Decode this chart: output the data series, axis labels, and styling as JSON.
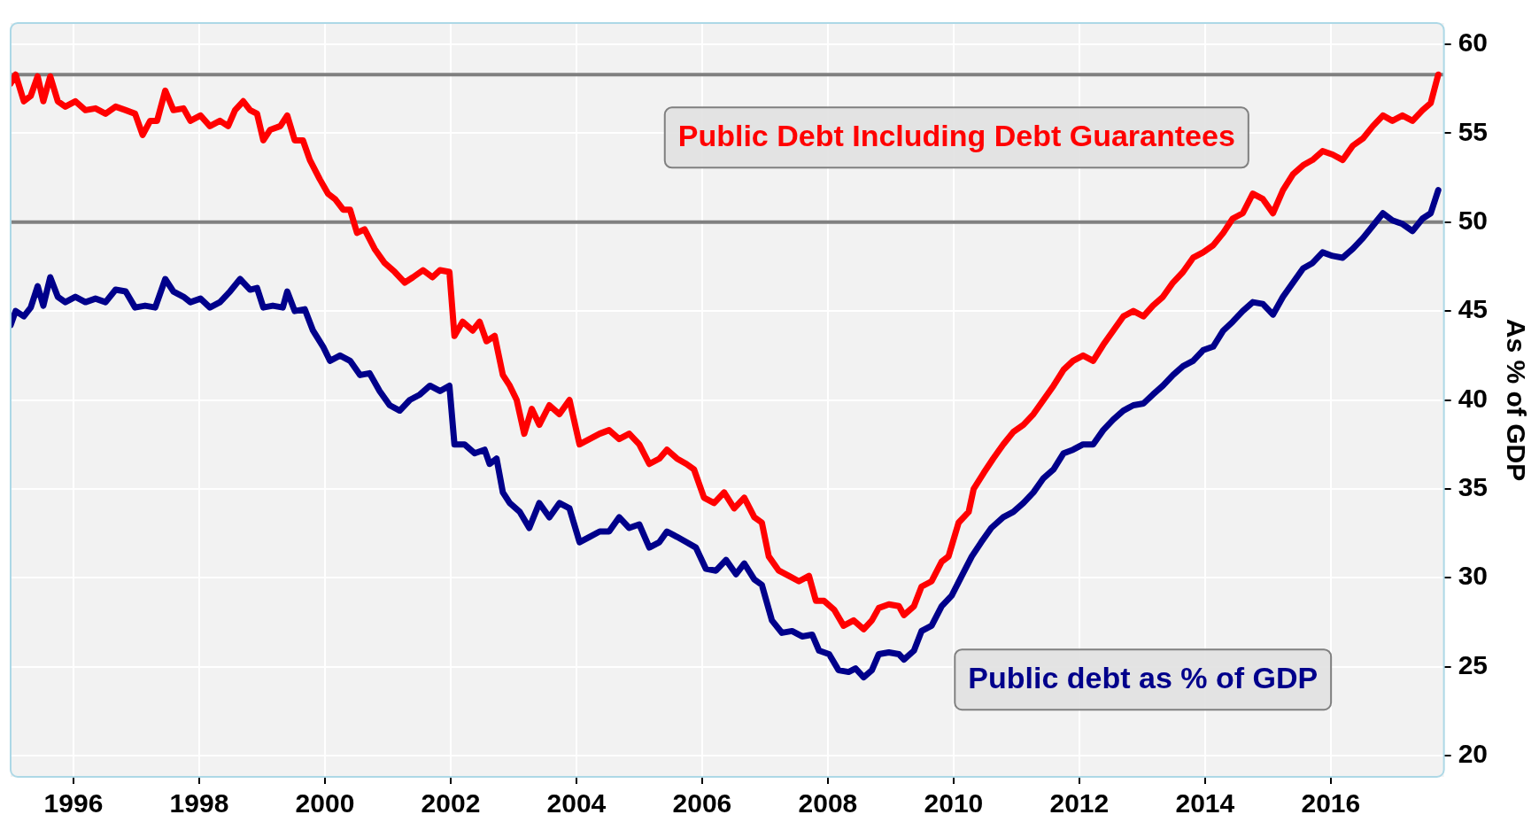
{
  "chart_data": {
    "type": "line",
    "ylabel": "As % of GDP",
    "xlim": [
      1995,
      2017.8
    ],
    "xticks": [
      1996,
      1998,
      2000,
      2002,
      2004,
      2006,
      2008,
      2010,
      2012,
      2014,
      2016
    ],
    "ylim": [
      18.8,
      61.2
    ],
    "yticks": [
      20,
      25,
      30,
      35,
      40,
      45,
      50,
      55,
      60
    ],
    "grid": true,
    "legend": false,
    "marker": "none",
    "line_style": "solid",
    "ref_lines": [
      {
        "axis": "y",
        "value": 58.3,
        "color": "#808080"
      },
      {
        "axis": "y",
        "value": 50,
        "color": "#808080"
      }
    ],
    "series": [
      {
        "name": "Public Debt Including Debt Guarantees",
        "color": "#ff0000",
        "x": [
          1995.0,
          1995.08,
          1995.21,
          1995.32,
          1995.43,
          1995.52,
          1995.63,
          1995.75,
          1995.87,
          1996.03,
          1996.19,
          1996.35,
          1996.51,
          1996.67,
          1996.83,
          1996.98,
          1997.1,
          1997.22,
          1997.33,
          1997.46,
          1997.59,
          1997.75,
          1997.86,
          1998.02,
          1998.17,
          1998.33,
          1998.46,
          1998.57,
          1998.7,
          1998.81,
          1998.92,
          1999.02,
          1999.13,
          1999.29,
          1999.4,
          1999.52,
          1999.65,
          1999.76,
          1999.92,
          2000.05,
          2000.16,
          2000.29,
          2000.4,
          2000.51,
          2000.63,
          2000.79,
          2000.95,
          2001.11,
          2001.27,
          2001.4,
          2001.56,
          2001.71,
          2001.83,
          2001.98,
          2002.06,
          2002.19,
          2002.35,
          2002.46,
          2002.57,
          2002.7,
          2002.83,
          2002.94,
          2003.05,
          2003.17,
          2003.29,
          2003.41,
          2003.57,
          2003.73,
          2003.89,
          2004.05,
          2004.21,
          2004.37,
          2004.52,
          2004.68,
          2004.84,
          2005.0,
          2005.16,
          2005.32,
          2005.44,
          2005.6,
          2005.75,
          2005.87,
          2006.03,
          2006.19,
          2006.35,
          2006.51,
          2006.67,
          2006.83,
          2006.95,
          2007.06,
          2007.22,
          2007.38,
          2007.54,
          2007.7,
          2007.81,
          2007.94,
          2008.1,
          2008.25,
          2008.41,
          2008.57,
          2008.7,
          2008.81,
          2008.97,
          2009.13,
          2009.21,
          2009.37,
          2009.49,
          2009.65,
          2009.81,
          2009.92,
          2010.08,
          2010.24,
          2010.32,
          2010.48,
          2010.63,
          2010.79,
          2010.95,
          2011.11,
          2011.27,
          2011.43,
          2011.59,
          2011.75,
          2011.9,
          2012.06,
          2012.22,
          2012.38,
          2012.54,
          2012.7,
          2012.86,
          2013.02,
          2013.17,
          2013.33,
          2013.49,
          2013.65,
          2013.81,
          2013.97,
          2014.13,
          2014.29,
          2014.44,
          2014.6,
          2014.76,
          2014.92,
          2015.08,
          2015.24,
          2015.4,
          2015.56,
          2015.71,
          2015.87,
          2016.03,
          2016.19,
          2016.35,
          2016.51,
          2016.67,
          2016.83,
          2016.98,
          2017.14,
          2017.3,
          2017.46,
          2017.59,
          2017.71
        ],
        "values": [
          57.8,
          58.3,
          56.8,
          57.1,
          58.2,
          56.8,
          58.2,
          56.8,
          56.5,
          56.8,
          56.3,
          56.4,
          56.1,
          56.5,
          56.3,
          56.1,
          54.9,
          55.7,
          55.7,
          57.4,
          56.3,
          56.4,
          55.7,
          56.0,
          55.4,
          55.7,
          55.4,
          56.3,
          56.8,
          56.3,
          56.1,
          54.6,
          55.2,
          55.4,
          56.0,
          54.6,
          54.6,
          53.5,
          52.4,
          51.6,
          51.3,
          50.7,
          50.7,
          49.4,
          49.6,
          48.5,
          47.7,
          47.2,
          46.6,
          46.9,
          47.3,
          46.9,
          47.3,
          47.2,
          43.6,
          44.4,
          43.9,
          44.4,
          43.3,
          43.6,
          41.4,
          40.8,
          40.0,
          38.1,
          39.5,
          38.6,
          39.7,
          39.2,
          40.0,
          37.5,
          37.8,
          38.1,
          38.3,
          37.8,
          38.1,
          37.5,
          36.4,
          36.7,
          37.2,
          36.7,
          36.4,
          36.1,
          34.5,
          34.2,
          34.8,
          33.9,
          34.5,
          33.4,
          33.1,
          31.2,
          30.4,
          30.1,
          29.8,
          30.1,
          28.7,
          28.7,
          28.2,
          27.3,
          27.6,
          27.1,
          27.6,
          28.3,
          28.5,
          28.4,
          27.9,
          28.4,
          29.5,
          29.8,
          30.9,
          31.2,
          33.1,
          33.7,
          35.0,
          35.9,
          36.7,
          37.5,
          38.2,
          38.6,
          39.2,
          40.0,
          40.8,
          41.7,
          42.2,
          42.5,
          42.2,
          43.1,
          43.9,
          44.7,
          45.0,
          44.7,
          45.3,
          45.8,
          46.6,
          47.2,
          48.0,
          48.3,
          48.7,
          49.4,
          50.2,
          50.5,
          51.6,
          51.3,
          50.5,
          51.8,
          52.7,
          53.2,
          53.5,
          54.0,
          53.8,
          53.5,
          54.3,
          54.7,
          55.4,
          56.0,
          55.7,
          56.0,
          55.7,
          56.3,
          56.7,
          58.3
        ]
      },
      {
        "name": "Public debt as % of GDP",
        "color": "#00008b",
        "x": [
          1995.0,
          1995.08,
          1995.21,
          1995.32,
          1995.43,
          1995.52,
          1995.63,
          1995.75,
          1995.87,
          1996.03,
          1996.19,
          1996.35,
          1996.51,
          1996.67,
          1996.83,
          1996.98,
          1997.14,
          1997.3,
          1997.46,
          1997.59,
          1997.75,
          1997.86,
          1998.02,
          1998.17,
          1998.33,
          1998.49,
          1998.65,
          1998.81,
          1998.92,
          1999.02,
          1999.17,
          1999.33,
          1999.4,
          1999.52,
          1999.68,
          1999.81,
          1999.97,
          2000.08,
          2000.24,
          2000.4,
          2000.56,
          2000.71,
          2000.87,
          2001.03,
          2001.19,
          2001.35,
          2001.51,
          2001.67,
          2001.83,
          2001.98,
          2002.06,
          2002.22,
          2002.38,
          2002.54,
          2002.62,
          2002.73,
          2002.83,
          2002.94,
          2003.1,
          2003.25,
          2003.41,
          2003.57,
          2003.73,
          2003.89,
          2004.05,
          2004.21,
          2004.37,
          2004.52,
          2004.68,
          2004.84,
          2005.0,
          2005.16,
          2005.32,
          2005.44,
          2005.6,
          2005.75,
          2005.9,
          2006.06,
          2006.22,
          2006.38,
          2006.54,
          2006.67,
          2006.83,
          2006.95,
          2007.11,
          2007.27,
          2007.43,
          2007.59,
          2007.75,
          2007.86,
          2008.02,
          2008.17,
          2008.33,
          2008.44,
          2008.57,
          2008.7,
          2008.81,
          2008.97,
          2009.13,
          2009.21,
          2009.37,
          2009.49,
          2009.65,
          2009.81,
          2009.97,
          2010.13,
          2010.29,
          2010.44,
          2010.6,
          2010.79,
          2010.95,
          2011.11,
          2011.27,
          2011.43,
          2011.59,
          2011.75,
          2011.9,
          2012.06,
          2012.22,
          2012.38,
          2012.54,
          2012.7,
          2012.86,
          2013.02,
          2013.17,
          2013.33,
          2013.49,
          2013.65,
          2013.81,
          2013.97,
          2014.13,
          2014.29,
          2014.44,
          2014.6,
          2014.76,
          2014.92,
          2015.08,
          2015.24,
          2015.4,
          2015.56,
          2015.71,
          2015.87,
          2016.03,
          2016.19,
          2016.35,
          2016.51,
          2016.67,
          2016.83,
          2016.98,
          2017.14,
          2017.3,
          2017.46,
          2017.59,
          2017.71
        ],
        "values": [
          44.2,
          45.0,
          44.7,
          45.2,
          46.4,
          45.3,
          46.9,
          45.8,
          45.5,
          45.8,
          45.5,
          45.7,
          45.5,
          46.2,
          46.1,
          45.2,
          45.3,
          45.2,
          46.8,
          46.1,
          45.8,
          45.5,
          45.7,
          45.2,
          45.5,
          46.1,
          46.8,
          46.2,
          46.3,
          45.2,
          45.3,
          45.2,
          46.1,
          45.0,
          45.1,
          43.9,
          43.0,
          42.2,
          42.5,
          42.2,
          41.4,
          41.5,
          40.5,
          39.7,
          39.4,
          40.0,
          40.3,
          40.8,
          40.5,
          40.8,
          37.5,
          37.5,
          37.0,
          37.2,
          36.4,
          36.7,
          34.8,
          34.2,
          33.7,
          32.8,
          34.2,
          33.4,
          34.2,
          33.9,
          32.0,
          32.3,
          32.6,
          32.6,
          33.4,
          32.8,
          33.0,
          31.7,
          32.0,
          32.6,
          32.3,
          32.0,
          31.7,
          30.5,
          30.4,
          31.0,
          30.2,
          30.8,
          29.9,
          29.6,
          27.6,
          26.9,
          27.0,
          26.7,
          26.8,
          25.9,
          25.7,
          24.8,
          24.7,
          24.9,
          24.4,
          24.8,
          25.7,
          25.8,
          25.7,
          25.4,
          25.9,
          27.0,
          27.3,
          28.4,
          29.0,
          30.1,
          31.2,
          32.0,
          32.8,
          33.4,
          33.7,
          34.2,
          34.8,
          35.6,
          36.1,
          37.0,
          37.2,
          37.5,
          37.5,
          38.3,
          38.9,
          39.4,
          39.7,
          39.8,
          40.3,
          40.8,
          41.4,
          41.9,
          42.2,
          42.8,
          43.0,
          43.9,
          44.4,
          45.0,
          45.5,
          45.4,
          44.8,
          45.8,
          46.6,
          47.4,
          47.7,
          48.3,
          48.1,
          48.0,
          48.5,
          49.1,
          49.8,
          50.5,
          50.1,
          49.9,
          49.5,
          50.2,
          50.5,
          51.8
        ]
      }
    ]
  }
}
